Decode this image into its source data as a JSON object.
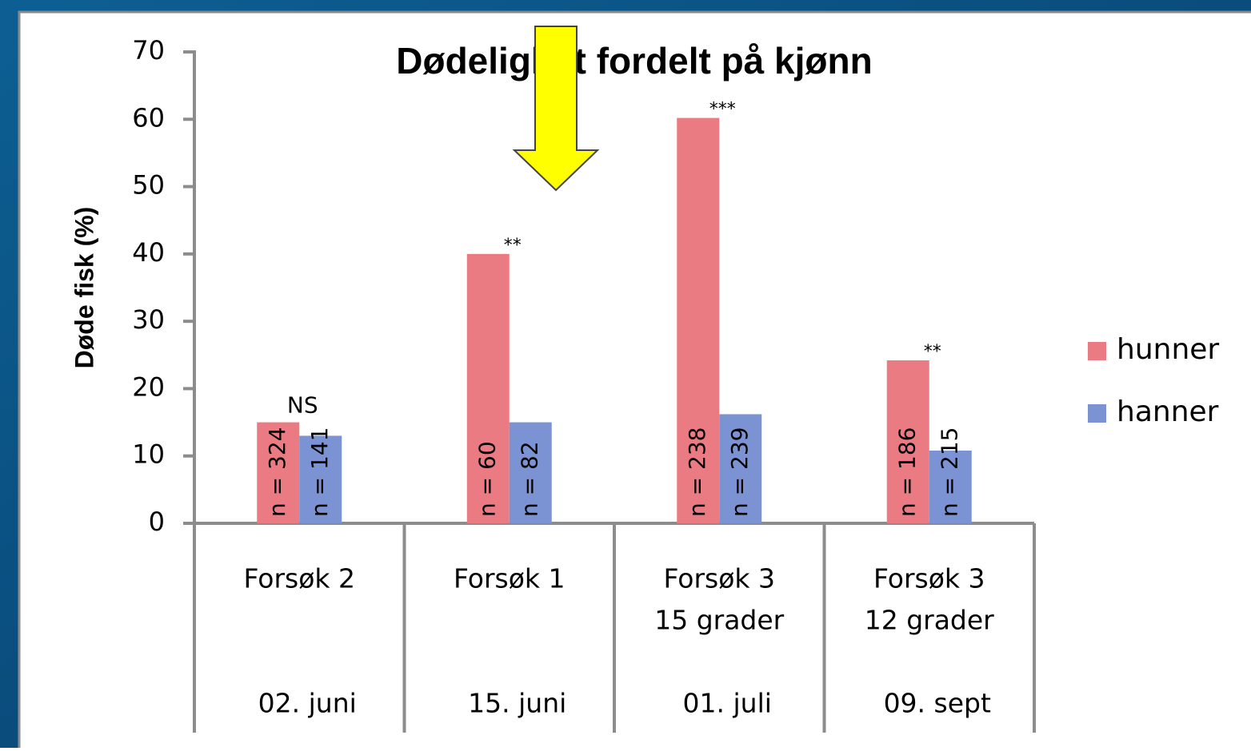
{
  "chart_data": {
    "type": "bar",
    "title": "Dødelighet fordelt på kjønn",
    "y_label": "Døde fisk (%)",
    "categories": [
      [
        "Forsøk 2"
      ],
      [
        "Forsøk 1"
      ],
      [
        "Forsøk 3",
        "15 grader"
      ],
      [
        "Forsøk 3",
        "12 grader"
      ]
    ],
    "dates": [
      "02. juni",
      "15. juni",
      "01. juli",
      "09. sept"
    ],
    "annotations": [
      "NS",
      "**",
      "***",
      "**"
    ],
    "series": [
      {
        "name": "hunner",
        "color": "#eb7b82",
        "values": [
          15,
          40,
          60.2,
          24.2
        ],
        "n_labels": [
          "n = 324",
          "n = 60",
          "n = 238",
          "n = 186"
        ]
      },
      {
        "name": "hanner",
        "color": "#7b93d2",
        "values": [
          13,
          15,
          16.2,
          10.8
        ],
        "n_labels": [
          "n = 141",
          "n = 82",
          "n = 239",
          "n = 215"
        ]
      }
    ],
    "ylim": [
      0,
      70
    ],
    "yticks": [
      0,
      10,
      20,
      30,
      40,
      50,
      60,
      70
    ],
    "legend": "right"
  }
}
